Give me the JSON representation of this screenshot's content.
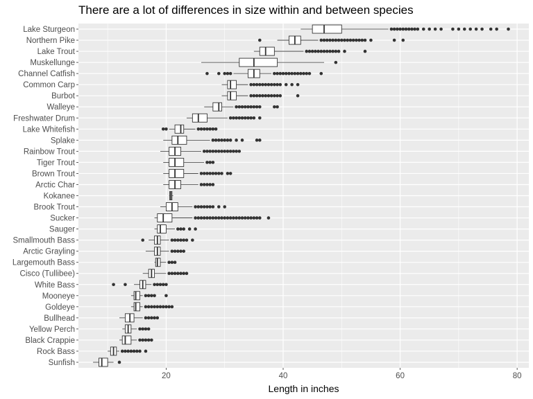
{
  "chart_data": {
    "type": "boxplot",
    "title": "There are a lot of differences in size within and between species",
    "xlabel": "Length in inches",
    "ylabel": "",
    "orientation": "horizontal",
    "xlim": [
      5,
      82
    ],
    "xticks": [
      20,
      40,
      60,
      80
    ],
    "grid": true,
    "categories": [
      "Lake Sturgeon",
      "Northern Pike",
      "Lake Trout",
      "Muskellunge",
      "Channel Catfish",
      "Common Carp",
      "Burbot",
      "Walleye",
      "Freshwater Drum",
      "Lake Whitefish",
      "Splake",
      "Rainbow Trout",
      "Tiger Trout",
      "Brown Trout",
      "Arctic Char",
      "Kokanee",
      "Brook Trout",
      "Sucker",
      "Sauger",
      "Smallmouth Bass",
      "Arctic Grayling",
      "Largemouth Bass",
      "Cisco (Tullibee)",
      "White Bass",
      "Mooneye",
      "Goldeye",
      "Bullhead",
      "Yellow Perch",
      "Black Crappie",
      "Rock Bass",
      "Sunfish"
    ],
    "boxes": [
      {
        "species": "Lake Sturgeon",
        "whisker_low": 43,
        "q1": 45,
        "median": 47,
        "q3": 50,
        "whisker_high": 58,
        "outliers": [
          58.5,
          59,
          59.5,
          60,
          60.5,
          61,
          61.5,
          62,
          62.5,
          63,
          64,
          65,
          66,
          67,
          69,
          70,
          71,
          72,
          73,
          74,
          75.5,
          76.5,
          78.5
        ]
      },
      {
        "species": "Northern Pike",
        "whisker_low": 39,
        "q1": 41,
        "median": 42,
        "q3": 43,
        "whisker_high": 46,
        "outliers": [
          36,
          46.5,
          47,
          47.5,
          48,
          48.5,
          49,
          49.5,
          50,
          50.5,
          51,
          51.5,
          52,
          52.5,
          53,
          53.5,
          54,
          55,
          59,
          60.5
        ]
      },
      {
        "species": "Lake Trout",
        "whisker_low": 35,
        "q1": 36,
        "median": 37,
        "q3": 38.5,
        "whisker_high": 43.5,
        "outliers": [
          44,
          44.5,
          45,
          45.5,
          46,
          46.5,
          47,
          47.5,
          48,
          48.5,
          49,
          49.5,
          50.5,
          54
        ]
      },
      {
        "species": "Muskellunge",
        "whisker_low": 26,
        "q1": 32.5,
        "median": 35,
        "q3": 39,
        "whisker_high": 47,
        "outliers": [
          49
        ]
      },
      {
        "species": "Channel Catfish",
        "whisker_low": 31.5,
        "q1": 34,
        "median": 35,
        "q3": 36,
        "whisker_high": 38,
        "outliers": [
          27,
          29,
          30,
          30.5,
          31,
          38.5,
          39,
          39.5,
          40,
          40.5,
          41,
          41.5,
          42,
          42.5,
          43,
          43.5,
          44,
          44.5,
          46.5
        ]
      },
      {
        "species": "Common Carp",
        "whisker_low": 29.5,
        "q1": 30.5,
        "median": 31,
        "q3": 32,
        "whisker_high": 34,
        "outliers": [
          34.5,
          35,
          35.5,
          36,
          36.5,
          37,
          37.5,
          38,
          38.5,
          39,
          39.5,
          40.5,
          41.5,
          42.5
        ]
      },
      {
        "species": "Burbot",
        "whisker_low": 29.5,
        "q1": 30.5,
        "median": 31,
        "q3": 32,
        "whisker_high": 34,
        "outliers": [
          34.5,
          35,
          35.5,
          36,
          36.5,
          37,
          37.5,
          38,
          38.5,
          39,
          39.5,
          42.5
        ]
      },
      {
        "species": "Walleye",
        "whisker_low": 26.5,
        "q1": 28,
        "median": 29,
        "q3": 29.5,
        "whisker_high": 31.5,
        "outliers": [
          32,
          32.5,
          33,
          33.5,
          34,
          34.5,
          35,
          35.5,
          36,
          38.5,
          39
        ]
      },
      {
        "species": "Freshwater Drum",
        "whisker_low": 23.5,
        "q1": 24.5,
        "median": 25.5,
        "q3": 27,
        "whisker_high": 30.5,
        "outliers": [
          31,
          31.5,
          32,
          32.5,
          33,
          33.5,
          34,
          34.5,
          35,
          36
        ]
      },
      {
        "species": "Lake Whitefish",
        "whisker_low": 20.5,
        "q1": 21.5,
        "median": 22.5,
        "q3": 23,
        "whisker_high": 25,
        "outliers": [
          19.5,
          20,
          25.5,
          26,
          26.5,
          27,
          27.5,
          28,
          28.5
        ]
      },
      {
        "species": "Splake",
        "whisker_low": 19.5,
        "q1": 21,
        "median": 22,
        "q3": 23.5,
        "whisker_high": 27.5,
        "outliers": [
          28,
          28.5,
          29,
          29.5,
          30,
          30.5,
          31,
          32,
          33,
          35.5,
          36
        ]
      },
      {
        "species": "Rainbow Trout",
        "whisker_low": 19,
        "q1": 20.5,
        "median": 21.5,
        "q3": 22.5,
        "whisker_high": 26,
        "outliers": [
          26.5,
          27,
          27.5,
          28,
          28.5,
          29,
          29.5,
          30,
          30.5,
          31,
          31.5,
          32,
          32.5
        ]
      },
      {
        "species": "Tiger Trout",
        "whisker_low": 19.5,
        "q1": 20.5,
        "median": 21.5,
        "q3": 23,
        "whisker_high": 26.5,
        "outliers": [
          27,
          27.5,
          28
        ]
      },
      {
        "species": "Brown Trout",
        "whisker_low": 19.5,
        "q1": 20.5,
        "median": 21.5,
        "q3": 23,
        "whisker_high": 25.5,
        "outliers": [
          26,
          26.5,
          27,
          27.5,
          28,
          28.5,
          29,
          29.5,
          30.5,
          31
        ]
      },
      {
        "species": "Arctic Char",
        "whisker_low": 19.5,
        "q1": 20.5,
        "median": 21.5,
        "q3": 22.5,
        "whisker_high": 25.5,
        "outliers": [
          26,
          26.5,
          27,
          27.5,
          28
        ]
      },
      {
        "species": "Kokanee",
        "whisker_low": 20.5,
        "q1": 20.6,
        "median": 20.8,
        "q3": 21,
        "whisker_high": 21.2,
        "outliers": []
      },
      {
        "species": "Brook Trout",
        "whisker_low": 19,
        "q1": 20,
        "median": 21,
        "q3": 22,
        "whisker_high": 24.5,
        "outliers": [
          25,
          25.5,
          26,
          26.5,
          27,
          27.5,
          28,
          29,
          30
        ]
      },
      {
        "species": "Sucker",
        "whisker_low": 18,
        "q1": 18.5,
        "median": 19.5,
        "q3": 21,
        "whisker_high": 24.5,
        "outliers": [
          25,
          25.5,
          26,
          26.5,
          27,
          27.5,
          28,
          28.5,
          29,
          29.5,
          30,
          30.5,
          31,
          31.5,
          32,
          32.5,
          33,
          33.5,
          34,
          34.5,
          35,
          35.5,
          36,
          37.5
        ]
      },
      {
        "species": "Sauger",
        "whisker_low": 18,
        "q1": 18.5,
        "median": 19,
        "q3": 20,
        "whisker_high": 21.5,
        "outliers": [
          22,
          22.5,
          23,
          24,
          25
        ]
      },
      {
        "species": "Smallmouth Bass",
        "whisker_low": 17,
        "q1": 18,
        "median": 18.5,
        "q3": 19,
        "whisker_high": 20.5,
        "outliers": [
          16,
          21,
          21.5,
          22,
          22.5,
          23,
          23.5,
          24.5
        ]
      },
      {
        "species": "Arctic Grayling",
        "whisker_low": 16.5,
        "q1": 18,
        "median": 18.5,
        "q3": 19,
        "whisker_high": 20.5,
        "outliers": [
          21,
          21.5,
          22,
          22.5,
          23
        ]
      },
      {
        "species": "Largemouth Bass",
        "whisker_low": 18,
        "q1": 18.2,
        "median": 18.5,
        "q3": 19,
        "whisker_high": 20,
        "outliers": [
          20.5,
          21,
          21.5
        ]
      },
      {
        "species": "Cisco (Tullibee)",
        "whisker_low": 16,
        "q1": 17,
        "median": 17.5,
        "q3": 18,
        "whisker_high": 20,
        "outliers": [
          20.5,
          21,
          21.5,
          22,
          22.5,
          23,
          23.5
        ]
      },
      {
        "species": "White Bass",
        "whisker_low": 14.5,
        "q1": 15.5,
        "median": 16,
        "q3": 16.5,
        "whisker_high": 17.5,
        "outliers": [
          11,
          13,
          18,
          18.5,
          19,
          19.5,
          20
        ]
      },
      {
        "species": "Mooneye",
        "whisker_low": 14,
        "q1": 14.5,
        "median": 14.8,
        "q3": 15.5,
        "whisker_high": 16,
        "outliers": [
          16.5,
          17,
          17.5,
          18,
          20
        ]
      },
      {
        "species": "Goldeye",
        "whisker_low": 14,
        "q1": 14.5,
        "median": 14.8,
        "q3": 15.5,
        "whisker_high": 16,
        "outliers": [
          16.5,
          17,
          17.5,
          18,
          18.5,
          19,
          19.5,
          20,
          20.5,
          21
        ]
      },
      {
        "species": "Bullhead",
        "whisker_low": 12,
        "q1": 13,
        "median": 13.8,
        "q3": 14.5,
        "whisker_high": 16,
        "outliers": [
          16.5,
          17,
          17.5,
          18,
          18.5
        ]
      },
      {
        "species": "Yellow Perch",
        "whisker_low": 12.5,
        "q1": 13,
        "median": 13.5,
        "q3": 14,
        "whisker_high": 15,
        "outliers": [
          15.5,
          16,
          16.5,
          17
        ]
      },
      {
        "species": "Black Crappie",
        "whisker_low": 12,
        "q1": 12.5,
        "median": 13,
        "q3": 14,
        "whisker_high": 15,
        "outliers": [
          15.5,
          16,
          16.5,
          17,
          17.5
        ]
      },
      {
        "species": "Rock Bass",
        "whisker_low": 10,
        "q1": 10.5,
        "median": 11,
        "q3": 11.5,
        "whisker_high": 12,
        "outliers": [
          12.5,
          13,
          13.5,
          14,
          14.5,
          15,
          15.5,
          16.5
        ]
      },
      {
        "species": "Sunfish",
        "whisker_low": 7.5,
        "q1": 8.5,
        "median": 9,
        "q3": 10,
        "whisker_high": 11,
        "outliers": [
          12
        ]
      }
    ],
    "colors": {
      "panel_bg": "#ebebeb",
      "grid": "#ffffff",
      "box_fill": "#ffffff",
      "box_stroke": "#333333",
      "outlier": "#333333",
      "tick_text": "#4d4d4d",
      "title_text": "#000000"
    }
  }
}
